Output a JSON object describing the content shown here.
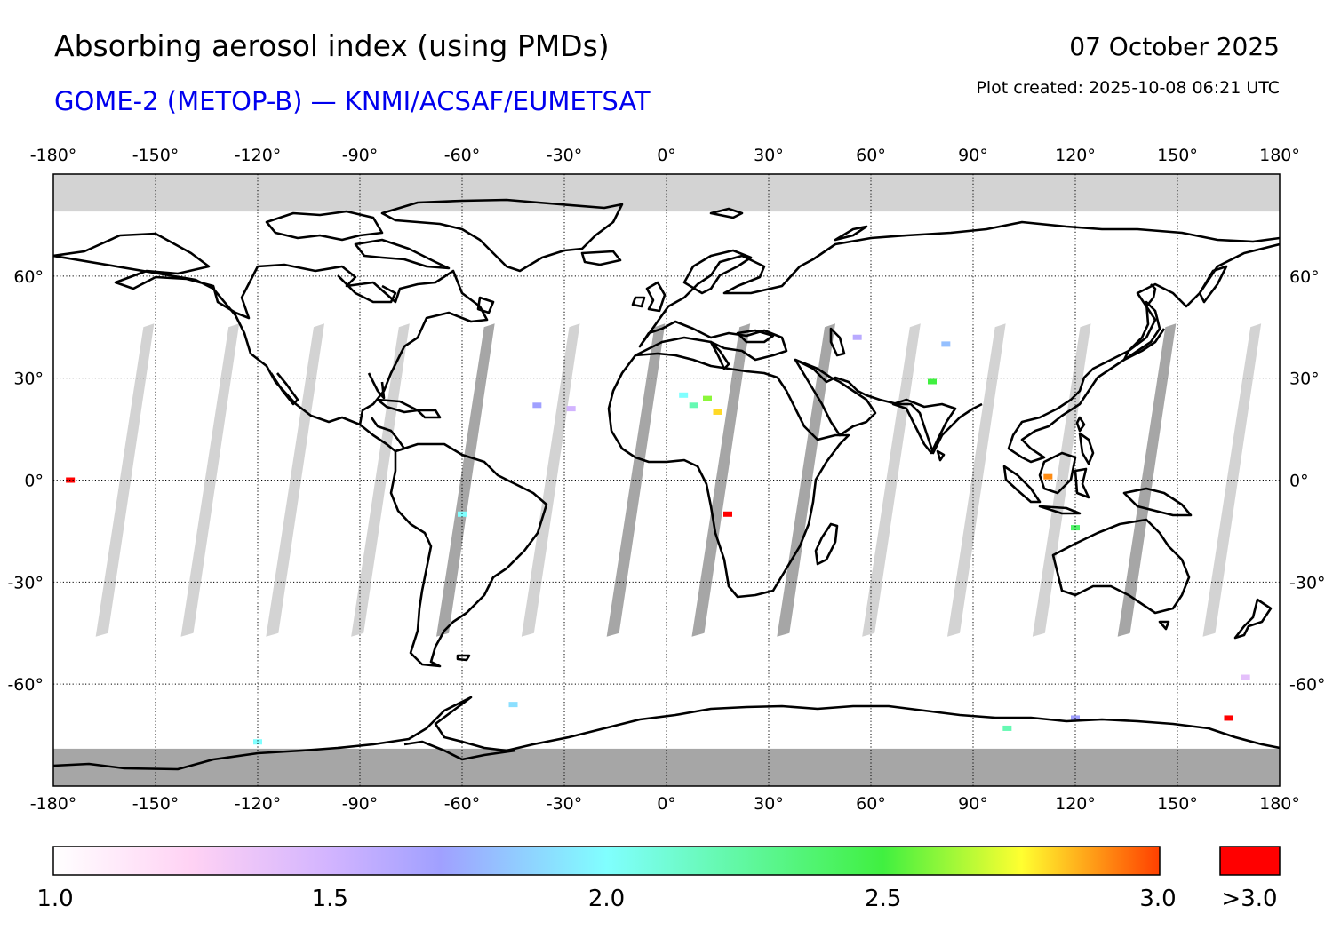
{
  "header": {
    "title": "Absorbing aerosol index (using PMDs)",
    "subtitle": "GOME-2 (METOP-B) — KNMI/ACSAF/EUMETSAT",
    "date": "07 October 2025",
    "plot_created": "Plot created: 2025-10-08 06:21 UTC"
  },
  "map": {
    "projection": "equirectangular",
    "lon_range": [
      -180,
      180
    ],
    "lat_range": [
      -90,
      90
    ],
    "lon_ticks": [
      {
        "value": -180,
        "label": "-180°"
      },
      {
        "value": -150,
        "label": "-150°"
      },
      {
        "value": -120,
        "label": "-120°"
      },
      {
        "value": -90,
        "label": "-90°"
      },
      {
        "value": -60,
        "label": "-60°"
      },
      {
        "value": -30,
        "label": "-30°"
      },
      {
        "value": 0,
        "label": "0°"
      },
      {
        "value": 30,
        "label": "30°"
      },
      {
        "value": 60,
        "label": "60°"
      },
      {
        "value": 90,
        "label": "90°"
      },
      {
        "value": 120,
        "label": "120°"
      },
      {
        "value": 150,
        "label": "150°"
      },
      {
        "value": 180,
        "label": "180°"
      }
    ],
    "lat_ticks": [
      {
        "value": 60,
        "label": "60°"
      },
      {
        "value": 30,
        "label": "30°"
      },
      {
        "value": 0,
        "label": "0°"
      },
      {
        "value": -30,
        "label": "-30°"
      },
      {
        "value": -60,
        "label": "-60°"
      }
    ],
    "colors": {
      "no_data": "#d3d3d3",
      "no_data_dark": "#a6a6a6",
      "coastline": "#000000",
      "grid": "#000000"
    },
    "orbit_gaps": [
      {
        "lon": -159,
        "shade": "light"
      },
      {
        "lon": -134,
        "shade": "light"
      },
      {
        "lon": -109,
        "shade": "light"
      },
      {
        "lon": -84,
        "shade": "light"
      },
      {
        "lon": -59,
        "shade": "dark"
      },
      {
        "lon": -34,
        "shade": "light"
      },
      {
        "lon": -9,
        "shade": "dark"
      },
      {
        "lon": 16,
        "shade": "dark"
      },
      {
        "lon": 41,
        "shade": "dark"
      },
      {
        "lon": 66,
        "shade": "light"
      },
      {
        "lon": 91,
        "shade": "light"
      },
      {
        "lon": 116,
        "shade": "light"
      },
      {
        "lon": 141,
        "shade": "dark"
      },
      {
        "lon": 166,
        "shade": "light"
      }
    ],
    "aerosol_spots": [
      {
        "lon": 12,
        "lat": 24,
        "value": 2.6
      },
      {
        "lon": 5,
        "lat": 25,
        "value": 2.0
      },
      {
        "lon": 8,
        "lat": 22,
        "value": 2.2
      },
      {
        "lon": 15,
        "lat": 20,
        "value": 2.8
      },
      {
        "lon": 78,
        "lat": 29,
        "value": 2.5
      },
      {
        "lon": 82,
        "lat": 40,
        "value": 1.8
      },
      {
        "lon": 56,
        "lat": 42,
        "value": 1.6
      },
      {
        "lon": -28,
        "lat": 21,
        "value": 1.5
      },
      {
        "lon": -38,
        "lat": 22,
        "value": 1.7
      },
      {
        "lon": 120,
        "lat": -14,
        "value": 2.4
      },
      {
        "lon": 112,
        "lat": 1,
        "value": 2.9
      },
      {
        "lon": 18,
        "lat": -10,
        "value": 3.1
      },
      {
        "lon": -175,
        "lat": 0,
        "value": 3.1
      },
      {
        "lon": 170,
        "lat": -58,
        "value": 1.4
      },
      {
        "lon": -120,
        "lat": -77,
        "value": 2.0
      },
      {
        "lon": 100,
        "lat": -73,
        "value": 2.2
      },
      {
        "lon": 165,
        "lat": -70,
        "value": 3.1
      },
      {
        "lon": -45,
        "lat": -66,
        "value": 1.9
      },
      {
        "lon": 120,
        "lat": -70,
        "value": 1.7
      },
      {
        "lon": -60,
        "lat": -10,
        "value": 2.0
      }
    ]
  },
  "colorbar": {
    "min": 1.0,
    "max": 3.0,
    "ticks": [
      {
        "value": 1.0,
        "label": "1.0"
      },
      {
        "value": 1.5,
        "label": "1.5"
      },
      {
        "value": 2.0,
        "label": "2.0"
      },
      {
        "value": 2.5,
        "label": "2.5"
      },
      {
        "value": 3.0,
        "label": "3.0"
      }
    ],
    "stops": [
      {
        "value": 1.0,
        "color": "#ffffff"
      },
      {
        "value": 1.25,
        "color": "#ffd2f4"
      },
      {
        "value": 1.5,
        "color": "#d2b4ff"
      },
      {
        "value": 1.7,
        "color": "#a0a0ff"
      },
      {
        "value": 2.0,
        "color": "#80ffff"
      },
      {
        "value": 2.5,
        "color": "#40f040"
      },
      {
        "value": 2.75,
        "color": "#ffff30"
      },
      {
        "value": 3.0,
        "color": "#ff4000"
      }
    ],
    "overflow_label": ">3.0",
    "overflow_color": "#ff0000"
  }
}
